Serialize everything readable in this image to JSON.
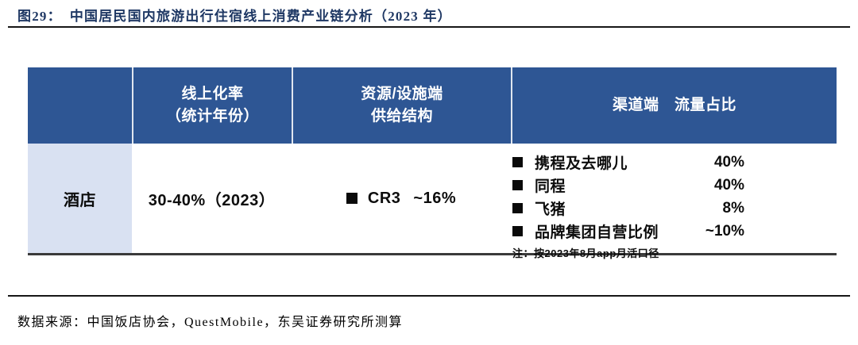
{
  "appearance": {
    "header_bg": "#2E5694",
    "header_text_color": "#FFFFFF",
    "category_cell_bg": "#D9E1F2",
    "title_color": "#1F3864",
    "rule_color": "#161616",
    "table_bottom_border_color": "#3A3A3A",
    "body_text_color": "#0D0D0D"
  },
  "figure": {
    "label": "图29：",
    "title": "中国居民国内旅游出行住宿线上消费产业链分析（2023 年）",
    "source": "数据来源：中国饭店协会，QuestMobile，东吴证券研究所测算"
  },
  "table": {
    "header": {
      "category": "",
      "online_rate_line1": "线上化率",
      "online_rate_line2": "（统计年份）",
      "supply_line1": "资源/设施端",
      "supply_line2": "供给结构",
      "channel": "渠道端　流量占比"
    },
    "row": {
      "category": "酒店",
      "online_rate": "30-40%（2023）",
      "supply_structure": {
        "name": "CR3",
        "value": "~16%"
      },
      "channel_items": [
        {
          "name": "携程及去哪儿",
          "share": "40%"
        },
        {
          "name": "同程",
          "share": "40%"
        },
        {
          "name": "飞猪",
          "share": "8%"
        },
        {
          "name": "品牌集团自营比例",
          "share": "~10%"
        }
      ],
      "note": "注：按2023年8月app月活口径"
    }
  }
}
